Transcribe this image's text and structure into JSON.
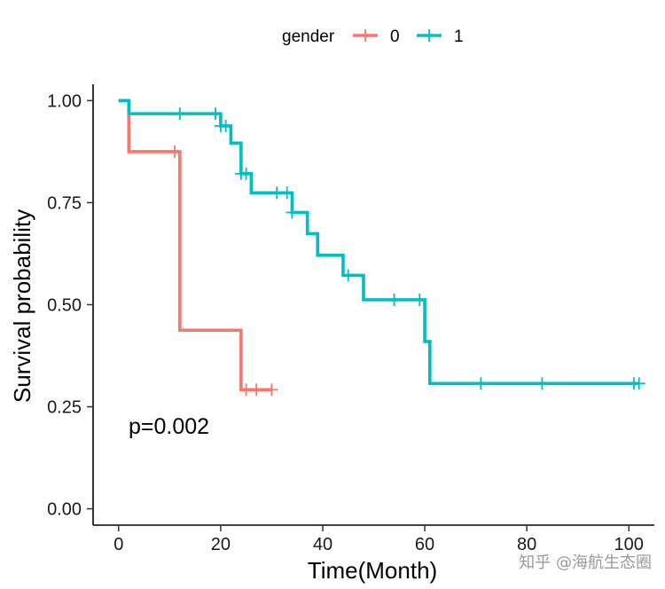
{
  "chart_data": {
    "type": "line",
    "subtype": "kaplan-meier step",
    "xlabel": "Time(Month)",
    "ylabel": "Survival probability",
    "xlim": [
      -5,
      105
    ],
    "ylim": [
      -0.04,
      1.04
    ],
    "xticks": [
      0,
      20,
      40,
      60,
      80,
      100
    ],
    "xtick_labels": [
      "0",
      "20",
      "40",
      "60",
      "80",
      "100"
    ],
    "yticks": [
      0.0,
      0.25,
      0.5,
      0.75,
      1.0
    ],
    "ytick_labels": [
      "0.00",
      "0.25",
      "0.50",
      "0.75",
      "1.00"
    ],
    "grid": false,
    "legend": {
      "title": "gender",
      "position": "top",
      "entries": [
        {
          "label": "0",
          "color": "#F8766D"
        },
        {
          "label": "1",
          "color": "#00BFC4"
        }
      ]
    },
    "annotation": "p=0.002",
    "series": [
      {
        "name": "0",
        "color": "#F8766D",
        "steps": [
          [
            0,
            1.0
          ],
          [
            2,
            0.875
          ],
          [
            12,
            0.4375
          ],
          [
            24,
            0.2917
          ],
          [
            30,
            0.2917
          ]
        ],
        "censored": [
          [
            11,
            0.875
          ],
          [
            25,
            0.2917
          ],
          [
            27,
            0.2917
          ],
          [
            30,
            0.2917
          ]
        ]
      },
      {
        "name": "1",
        "color": "#00BFC4",
        "steps": [
          [
            0,
            1.0
          ],
          [
            2,
            0.968
          ],
          [
            20,
            0.938
          ],
          [
            22,
            0.896
          ],
          [
            24,
            0.821
          ],
          [
            26,
            0.774
          ],
          [
            34,
            0.726
          ],
          [
            37,
            0.674
          ],
          [
            39,
            0.621
          ],
          [
            44,
            0.572
          ],
          [
            48,
            0.512
          ],
          [
            60,
            0.41
          ],
          [
            61,
            0.307
          ],
          [
            102,
            0.307
          ]
        ],
        "censored": [
          [
            12,
            0.968
          ],
          [
            19,
            0.968
          ],
          [
            20,
            0.938
          ],
          [
            21,
            0.938
          ],
          [
            24,
            0.821
          ],
          [
            25,
            0.821
          ],
          [
            31,
            0.774
          ],
          [
            33,
            0.774
          ],
          [
            34,
            0.726
          ],
          [
            45,
            0.572
          ],
          [
            54,
            0.512
          ],
          [
            59,
            0.512
          ],
          [
            71,
            0.307
          ],
          [
            83,
            0.307
          ],
          [
            101,
            0.307
          ],
          [
            102,
            0.307
          ]
        ]
      }
    ]
  },
  "watermark": "知乎 @海航生态圈"
}
